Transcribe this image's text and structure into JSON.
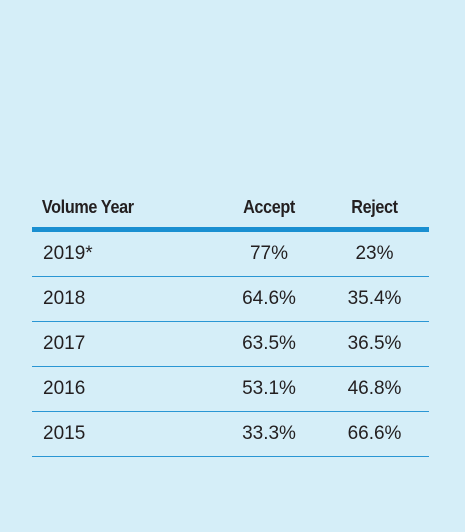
{
  "chart_data": {
    "type": "table",
    "columns": [
      "Volume Year",
      "Accept",
      "Reject"
    ],
    "rows": [
      {
        "year": "2019*",
        "accept": "77%",
        "reject": "23%"
      },
      {
        "year": "2018",
        "accept": "64.6%",
        "reject": "35.4%"
      },
      {
        "year": "2017",
        "accept": "63.5%",
        "reject": "36.5%"
      },
      {
        "year": "2016",
        "accept": "53.1%",
        "reject": "46.8%"
      },
      {
        "year": "2015",
        "accept": "33.3%",
        "reject": "66.6%"
      }
    ]
  },
  "colors": {
    "background": "#d5eef8",
    "accent_rule": "#1a8fd1",
    "text": "#231f20"
  }
}
